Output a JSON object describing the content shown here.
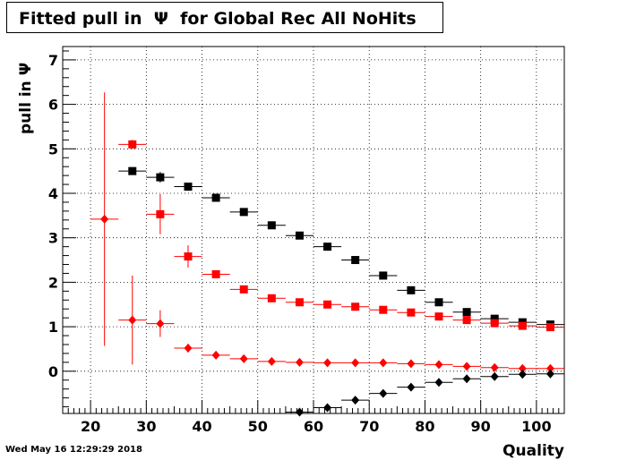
{
  "title": "Fitted pull in  Ψ  for Global Rec All NoHits",
  "timestamp": "Wed May 16 12:29:29 2018",
  "chart_data": {
    "type": "scatter",
    "title": "Fitted pull in  Ψ  for Global Rec All NoHits",
    "xlabel": "Quality",
    "ylabel": "pull in  Ψ",
    "xlim": [
      15,
      105
    ],
    "ylim": [
      -0.95,
      7.3
    ],
    "grid": true,
    "x_ticks": [
      20,
      30,
      40,
      50,
      60,
      70,
      80,
      90,
      100
    ],
    "y_ticks": [
      0,
      1,
      2,
      3,
      4,
      5,
      6,
      7
    ],
    "series": [
      {
        "marker": "square",
        "color": "#000000",
        "points": [
          {
            "x": 27.5,
            "y": 4.5,
            "yerr": 0
          },
          {
            "x": 32.5,
            "y": 4.36,
            "yerr": 0.12
          },
          {
            "x": 37.5,
            "y": 4.15,
            "yerr": 0
          },
          {
            "x": 42.5,
            "y": 3.9,
            "yerr": 0
          },
          {
            "x": 47.5,
            "y": 3.58,
            "yerr": 0
          },
          {
            "x": 52.5,
            "y": 3.28,
            "yerr": 0
          },
          {
            "x": 57.5,
            "y": 3.05,
            "yerr": 0
          },
          {
            "x": 62.5,
            "y": 2.8,
            "yerr": 0
          },
          {
            "x": 67.5,
            "y": 2.5,
            "yerr": 0
          },
          {
            "x": 72.5,
            "y": 2.15,
            "yerr": 0
          },
          {
            "x": 77.5,
            "y": 1.82,
            "yerr": 0
          },
          {
            "x": 82.5,
            "y": 1.55,
            "yerr": 0
          },
          {
            "x": 87.5,
            "y": 1.33,
            "yerr": 0
          },
          {
            "x": 92.5,
            "y": 1.18,
            "yerr": 0
          },
          {
            "x": 97.5,
            "y": 1.1,
            "yerr": 0
          },
          {
            "x": 102.5,
            "y": 1.05,
            "yerr": 0
          }
        ]
      },
      {
        "marker": "square",
        "color": "#ff0000",
        "points": [
          {
            "x": 27.5,
            "y": 5.1,
            "yerr": 0.1
          },
          {
            "x": 32.5,
            "y": 3.53,
            "yerr": 0.45
          },
          {
            "x": 37.5,
            "y": 2.58,
            "yerr": 0.25
          },
          {
            "x": 42.5,
            "y": 2.18,
            "yerr": 0.08
          },
          {
            "x": 47.5,
            "y": 1.84,
            "yerr": 0
          },
          {
            "x": 52.5,
            "y": 1.64,
            "yerr": 0
          },
          {
            "x": 57.5,
            "y": 1.55,
            "yerr": 0
          },
          {
            "x": 62.5,
            "y": 1.5,
            "yerr": 0
          },
          {
            "x": 67.5,
            "y": 1.45,
            "yerr": 0
          },
          {
            "x": 72.5,
            "y": 1.38,
            "yerr": 0
          },
          {
            "x": 77.5,
            "y": 1.32,
            "yerr": 0
          },
          {
            "x": 82.5,
            "y": 1.23,
            "yerr": 0
          },
          {
            "x": 87.5,
            "y": 1.15,
            "yerr": 0
          },
          {
            "x": 92.5,
            "y": 1.08,
            "yerr": 0
          },
          {
            "x": 97.5,
            "y": 1.02,
            "yerr": 0
          },
          {
            "x": 102.5,
            "y": 0.99,
            "yerr": 0
          }
        ]
      },
      {
        "marker": "diamond",
        "color": "#ff0000",
        "points": [
          {
            "x": 22.5,
            "y": 3.42,
            "yerr": 2.85
          },
          {
            "x": 27.5,
            "y": 1.15,
            "yerr": 1.0
          },
          {
            "x": 32.5,
            "y": 1.07,
            "yerr": 0.3
          },
          {
            "x": 37.5,
            "y": 0.52,
            "yerr": 0.1
          },
          {
            "x": 42.5,
            "y": 0.36,
            "yerr": 0
          },
          {
            "x": 47.5,
            "y": 0.28,
            "yerr": 0
          },
          {
            "x": 52.5,
            "y": 0.22,
            "yerr": 0
          },
          {
            "x": 57.5,
            "y": 0.2,
            "yerr": 0
          },
          {
            "x": 62.5,
            "y": 0.19,
            "yerr": 0
          },
          {
            "x": 67.5,
            "y": 0.19,
            "yerr": 0
          },
          {
            "x": 72.5,
            "y": 0.19,
            "yerr": 0
          },
          {
            "x": 77.5,
            "y": 0.17,
            "yerr": 0
          },
          {
            "x": 82.5,
            "y": 0.15,
            "yerr": 0
          },
          {
            "x": 87.5,
            "y": 0.11,
            "yerr": 0
          },
          {
            "x": 92.5,
            "y": 0.08,
            "yerr": 0
          },
          {
            "x": 97.5,
            "y": 0.06,
            "yerr": 0
          },
          {
            "x": 102.5,
            "y": 0.06,
            "yerr": 0
          }
        ]
      },
      {
        "marker": "diamond",
        "color": "#000000",
        "points": [
          {
            "x": 57.5,
            "y": -0.92,
            "yerr": 0
          },
          {
            "x": 62.5,
            "y": -0.82,
            "yerr": 0
          },
          {
            "x": 67.5,
            "y": -0.65,
            "yerr": 0
          },
          {
            "x": 72.5,
            "y": -0.5,
            "yerr": 0
          },
          {
            "x": 77.5,
            "y": -0.36,
            "yerr": 0
          },
          {
            "x": 82.5,
            "y": -0.25,
            "yerr": 0
          },
          {
            "x": 87.5,
            "y": -0.17,
            "yerr": 0
          },
          {
            "x": 92.5,
            "y": -0.12,
            "yerr": 0
          },
          {
            "x": 97.5,
            "y": -0.07,
            "yerr": 0
          },
          {
            "x": 102.5,
            "y": -0.06,
            "yerr": 0
          }
        ]
      }
    ]
  }
}
